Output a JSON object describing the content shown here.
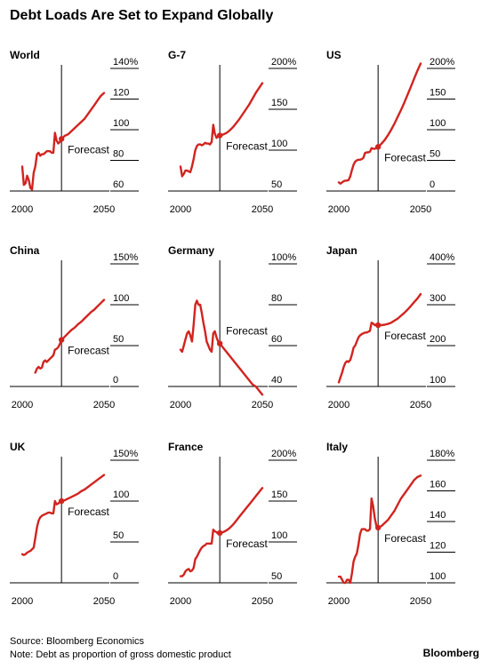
{
  "title": "Debt Loads Are Set to Expand Globally",
  "forecast_label": "Forecast",
  "x_ticks": [
    "2000",
    "2050"
  ],
  "x_tick_values": [
    2000,
    2050
  ],
  "forecast_start": 2024,
  "footer": {
    "source": "Source: Bloomberg Economics",
    "note": "Note: Debt as proportion of gross domestic product"
  },
  "brand": "Bloomberg",
  "colors": {
    "line": "#d12420",
    "axis": "#000000"
  },
  "chart_data": [
    {
      "type": "line",
      "title": "World",
      "ylim": [
        60,
        140
      ],
      "y_ticks": [
        60,
        80,
        100,
        120,
        140
      ],
      "y_tick_labels": [
        "60",
        "80",
        "100",
        "120",
        "140%"
      ],
      "x": [
        2000,
        2001,
        2002,
        2003,
        2004,
        2005,
        2006,
        2007,
        2008,
        2009,
        2010,
        2011,
        2012,
        2013,
        2014,
        2015,
        2016,
        2017,
        2018,
        2019,
        2020,
        2021,
        2022,
        2023,
        2024,
        2026,
        2028,
        2030,
        2032,
        2034,
        2036,
        2038,
        2040,
        2042,
        2044,
        2046,
        2048,
        2050
      ],
      "y": [
        76,
        64,
        65,
        70,
        67,
        62,
        61,
        72,
        76,
        84,
        85,
        83,
        84,
        84,
        85,
        86,
        86,
        86,
        85,
        85,
        98,
        93,
        91,
        92,
        94,
        96,
        97,
        99,
        101,
        103,
        105,
        107,
        110,
        113,
        116,
        119,
        122,
        124
      ]
    },
    {
      "type": "line",
      "title": "G-7",
      "ylim": [
        50,
        200
      ],
      "y_ticks": [
        50,
        100,
        150,
        200
      ],
      "y_tick_labels": [
        "50",
        "100",
        "150",
        "200%"
      ],
      "x": [
        2000,
        2001,
        2002,
        2003,
        2004,
        2005,
        2006,
        2007,
        2008,
        2009,
        2010,
        2011,
        2012,
        2013,
        2014,
        2015,
        2016,
        2017,
        2018,
        2019,
        2020,
        2021,
        2022,
        2023,
        2024,
        2026,
        2028,
        2030,
        2032,
        2034,
        2036,
        2038,
        2040,
        2042,
        2044,
        2046,
        2048,
        2050
      ],
      "y": [
        80,
        68,
        71,
        75,
        75,
        74,
        73,
        80,
        89,
        100,
        105,
        107,
        107,
        106,
        107,
        109,
        108,
        108,
        107,
        110,
        131,
        120,
        115,
        117,
        118,
        119,
        121,
        124,
        128,
        133,
        138,
        144,
        150,
        156,
        163,
        170,
        176,
        182
      ]
    },
    {
      "type": "line",
      "title": "US",
      "ylim": [
        0,
        200
      ],
      "y_ticks": [
        0,
        50,
        100,
        150,
        200
      ],
      "y_tick_labels": [
        "0",
        "50",
        "100",
        "150",
        "200%"
      ],
      "x": [
        2000,
        2001,
        2002,
        2003,
        2004,
        2005,
        2006,
        2007,
        2008,
        2009,
        2010,
        2011,
        2012,
        2013,
        2014,
        2015,
        2016,
        2017,
        2018,
        2019,
        2020,
        2021,
        2022,
        2023,
        2024,
        2026,
        2028,
        2030,
        2032,
        2034,
        2036,
        2038,
        2040,
        2042,
        2044,
        2046,
        2048,
        2050
      ],
      "y": [
        14,
        12,
        14,
        16,
        17,
        17,
        18,
        24,
        34,
        43,
        48,
        50,
        51,
        51,
        52,
        54,
        62,
        63,
        63,
        64,
        70,
        69,
        69,
        70,
        72,
        77,
        83,
        91,
        100,
        110,
        121,
        132,
        144,
        157,
        170,
        183,
        196,
        208
      ]
    },
    {
      "type": "line",
      "title": "China",
      "ylim": [
        0,
        150
      ],
      "y_ticks": [
        0,
        50,
        100,
        150
      ],
      "y_tick_labels": [
        "0",
        "50",
        "100",
        "150%"
      ],
      "x": [
        2008,
        2009,
        2010,
        2011,
        2012,
        2013,
        2014,
        2015,
        2016,
        2017,
        2018,
        2019,
        2020,
        2021,
        2022,
        2023,
        2024,
        2026,
        2028,
        2030,
        2032,
        2034,
        2036,
        2038,
        2040,
        2042,
        2044,
        2046,
        2048,
        2050
      ],
      "y": [
        17,
        22,
        24,
        22,
        23,
        30,
        32,
        30,
        32,
        34,
        36,
        38,
        45,
        46,
        48,
        52,
        57,
        61,
        65,
        69,
        72,
        76,
        79,
        83,
        87,
        91,
        94,
        98,
        102,
        106
      ]
    },
    {
      "type": "line",
      "title": "Germany",
      "ylim": [
        40,
        100
      ],
      "y_ticks": [
        40,
        60,
        80,
        100
      ],
      "y_tick_labels": [
        "40",
        "60",
        "80",
        "100%"
      ],
      "x": [
        2000,
        2001,
        2002,
        2003,
        2004,
        2005,
        2006,
        2007,
        2008,
        2009,
        2010,
        2011,
        2012,
        2013,
        2014,
        2015,
        2016,
        2017,
        2018,
        2019,
        2020,
        2021,
        2022,
        2023,
        2024,
        2026,
        2028,
        2030,
        2032,
        2034,
        2036,
        2038,
        2040,
        2042,
        2044,
        2046,
        2048,
        2050
      ],
      "y": [
        58,
        57,
        60,
        63,
        66,
        67,
        65,
        62,
        70,
        80,
        82,
        80,
        80,
        76,
        71,
        67,
        62,
        60,
        58,
        57,
        66,
        67,
        64,
        62,
        61,
        59,
        57,
        55,
        53,
        51,
        49,
        47,
        45,
        43,
        41,
        40,
        38,
        36
      ]
    },
    {
      "type": "line",
      "title": "Japan",
      "ylim": [
        100,
        400
      ],
      "y_ticks": [
        100,
        200,
        300,
        400
      ],
      "y_tick_labels": [
        "100",
        "200",
        "300",
        "400%"
      ],
      "x": [
        2000,
        2001,
        2002,
        2003,
        2004,
        2005,
        2006,
        2007,
        2008,
        2009,
        2010,
        2011,
        2012,
        2013,
        2014,
        2015,
        2016,
        2017,
        2018,
        2019,
        2020,
        2021,
        2022,
        2023,
        2024,
        2026,
        2028,
        2030,
        2032,
        2034,
        2036,
        2038,
        2040,
        2042,
        2044,
        2046,
        2048,
        2050
      ],
      "y": [
        110,
        122,
        134,
        148,
        158,
        162,
        160,
        165,
        178,
        195,
        200,
        210,
        220,
        225,
        228,
        230,
        232,
        232,
        234,
        236,
        256,
        254,
        250,
        252,
        250,
        250,
        251,
        253,
        256,
        261,
        266,
        273,
        280,
        288,
        297,
        306,
        315,
        326
      ]
    },
    {
      "type": "line",
      "title": "UK",
      "ylim": [
        0,
        150
      ],
      "y_ticks": [
        0,
        50,
        100,
        150
      ],
      "y_tick_labels": [
        "0",
        "50",
        "100",
        "150%"
      ],
      "x": [
        2000,
        2001,
        2002,
        2003,
        2004,
        2005,
        2006,
        2007,
        2008,
        2009,
        2010,
        2011,
        2012,
        2013,
        2014,
        2015,
        2016,
        2017,
        2018,
        2019,
        2020,
        2021,
        2022,
        2023,
        2024,
        2026,
        2028,
        2030,
        2032,
        2034,
        2036,
        2038,
        2040,
        2042,
        2044,
        2046,
        2048,
        2050
      ],
      "y": [
        35,
        34,
        35,
        37,
        38,
        39,
        41,
        43,
        55,
        68,
        76,
        80,
        82,
        83,
        84,
        85,
        86,
        86,
        85,
        85,
        100,
        96,
        97,
        99,
        100,
        101,
        103,
        105,
        107,
        109,
        112,
        114,
        117,
        120,
        123,
        126,
        129,
        132
      ]
    },
    {
      "type": "line",
      "title": "France",
      "ylim": [
        50,
        200
      ],
      "y_ticks": [
        50,
        100,
        150,
        200
      ],
      "y_tick_labels": [
        "50",
        "100",
        "150",
        "200%"
      ],
      "x": [
        2000,
        2001,
        2002,
        2003,
        2004,
        2005,
        2006,
        2007,
        2008,
        2009,
        2010,
        2011,
        2012,
        2013,
        2014,
        2015,
        2016,
        2017,
        2018,
        2019,
        2020,
        2021,
        2022,
        2023,
        2024,
        2026,
        2028,
        2030,
        2032,
        2034,
        2036,
        2038,
        2040,
        2042,
        2044,
        2046,
        2048,
        2050
      ],
      "y": [
        58,
        58,
        60,
        64,
        66,
        67,
        64,
        65,
        68,
        79,
        82,
        86,
        90,
        93,
        95,
        96,
        98,
        98,
        98,
        98,
        115,
        113,
        112,
        110,
        111,
        112,
        114,
        117,
        121,
        126,
        131,
        136,
        141,
        146,
        151,
        156,
        161,
        166
      ]
    },
    {
      "type": "line",
      "title": "Italy",
      "ylim": [
        100,
        180
      ],
      "y_ticks": [
        100,
        120,
        140,
        160,
        180
      ],
      "y_tick_labels": [
        "100",
        "120",
        "140",
        "160",
        "180%"
      ],
      "x": [
        2000,
        2001,
        2002,
        2003,
        2004,
        2005,
        2006,
        2007,
        2008,
        2009,
        2010,
        2011,
        2012,
        2013,
        2014,
        2015,
        2016,
        2017,
        2018,
        2019,
        2020,
        2021,
        2022,
        2023,
        2024,
        2026,
        2028,
        2030,
        2032,
        2034,
        2036,
        2038,
        2040,
        2042,
        2044,
        2046,
        2048,
        2050
      ],
      "y": [
        104,
        104,
        102,
        100,
        100,
        102,
        102,
        100,
        106,
        114,
        117,
        119,
        125,
        132,
        135,
        135,
        135,
        134,
        134,
        135,
        155,
        150,
        142,
        137,
        136,
        137,
        139,
        141,
        144,
        147,
        151,
        155,
        158,
        161,
        164,
        167,
        169,
        170
      ]
    }
  ]
}
